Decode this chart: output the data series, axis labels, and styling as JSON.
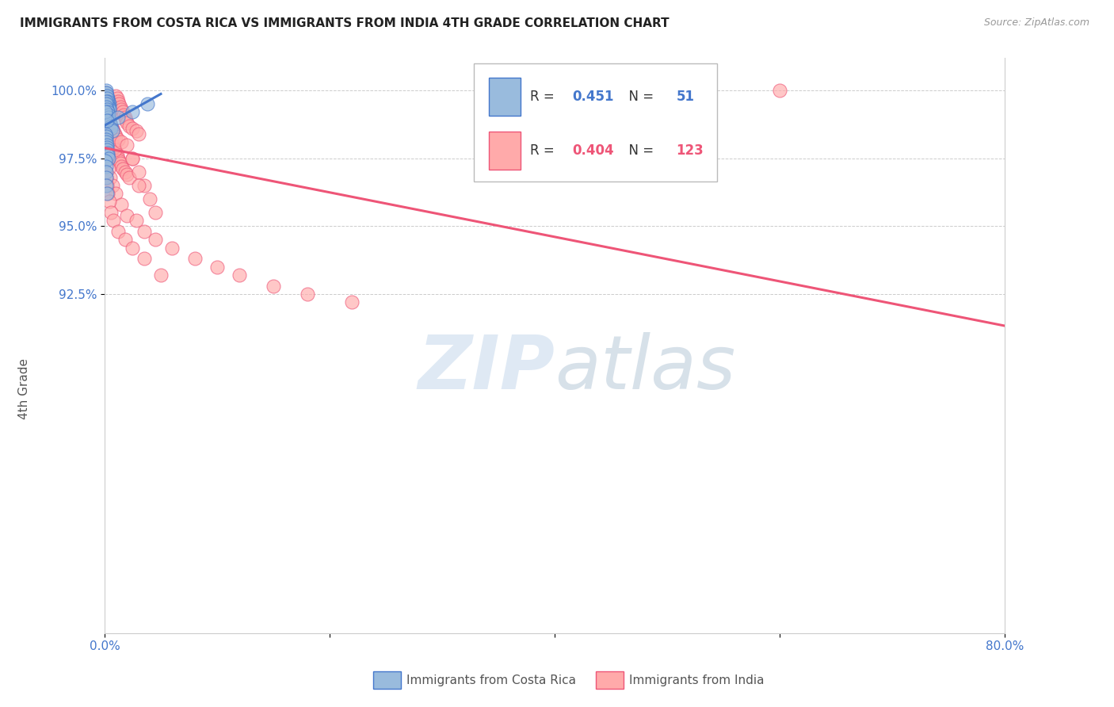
{
  "title": "IMMIGRANTS FROM COSTA RICA VS IMMIGRANTS FROM INDIA 4TH GRADE CORRELATION CHART",
  "source": "Source: ZipAtlas.com",
  "ylabel": "4th Grade",
  "xlim": [
    0.0,
    80.0
  ],
  "ylim": [
    80.0,
    101.2
  ],
  "legend_label1": "Immigrants from Costa Rica",
  "legend_label2": "Immigrants from India",
  "R1": 0.451,
  "N1": 51,
  "R2": 0.404,
  "N2": 123,
  "blue_color": "#99BBDD",
  "pink_color": "#FFAAAA",
  "trendline_blue": "#4477CC",
  "trendline_pink": "#EE5577",
  "background_color": "#ffffff",
  "blue_x": [
    0.15,
    0.18,
    0.2,
    0.22,
    0.25,
    0.28,
    0.3,
    0.35,
    0.4,
    0.45,
    0.15,
    0.17,
    0.2,
    0.23,
    0.26,
    0.3,
    0.35,
    0.4,
    0.12,
    0.14,
    0.18,
    0.22,
    0.28,
    0.33,
    0.38,
    0.42,
    0.48,
    0.55,
    0.6,
    0.7,
    0.1,
    0.12,
    0.15,
    0.18,
    0.2,
    0.22,
    0.25,
    0.28,
    0.32,
    0.36,
    0.1,
    0.12,
    0.14,
    0.16,
    0.18,
    0.2,
    1.2,
    2.5,
    3.8,
    0.08,
    0.25
  ],
  "blue_y": [
    99.8,
    99.9,
    99.7,
    99.8,
    99.6,
    99.5,
    99.7,
    99.6,
    99.5,
    99.4,
    100.0,
    99.9,
    99.8,
    99.7,
    99.6,
    99.5,
    99.4,
    99.3,
    99.6,
    99.5,
    99.4,
    99.3,
    99.2,
    99.1,
    99.0,
    98.9,
    98.8,
    98.7,
    98.6,
    98.5,
    98.4,
    98.3,
    98.2,
    98.1,
    98.0,
    97.9,
    97.8,
    97.7,
    97.6,
    97.5,
    97.4,
    97.2,
    97.0,
    96.8,
    96.5,
    96.2,
    99.0,
    99.2,
    99.5,
    99.2,
    98.9
  ],
  "pink_x": [
    0.1,
    0.12,
    0.15,
    0.18,
    0.2,
    0.22,
    0.25,
    0.28,
    0.3,
    0.35,
    0.4,
    0.45,
    0.5,
    0.55,
    0.6,
    0.65,
    0.7,
    0.8,
    0.9,
    1.0,
    1.1,
    1.2,
    1.3,
    1.4,
    1.5,
    1.6,
    1.8,
    2.0,
    2.2,
    2.5,
    0.1,
    0.12,
    0.14,
    0.16,
    0.18,
    0.2,
    0.22,
    0.24,
    0.26,
    0.28,
    0.3,
    0.35,
    0.4,
    0.45,
    0.5,
    0.55,
    0.6,
    0.7,
    0.8,
    0.9,
    1.0,
    1.1,
    1.2,
    1.3,
    1.4,
    1.5,
    1.6,
    1.7,
    1.8,
    1.9,
    2.0,
    2.2,
    2.5,
    2.8,
    3.0,
    0.1,
    0.12,
    0.14,
    0.16,
    0.18,
    0.2,
    0.25,
    0.3,
    0.35,
    0.4,
    0.45,
    0.5,
    0.6,
    0.7,
    0.8,
    0.9,
    1.0,
    1.2,
    1.5,
    2.0,
    2.5,
    3.0,
    3.5,
    4.0,
    4.5,
    0.12,
    0.18,
    0.25,
    0.35,
    0.5,
    0.7,
    1.0,
    1.5,
    2.0,
    2.8,
    3.5,
    4.5,
    6.0,
    8.0,
    10.0,
    12.0,
    15.0,
    18.0,
    22.0,
    3.0,
    0.1,
    0.15,
    0.2,
    0.3,
    0.4,
    0.6,
    0.8,
    1.2,
    1.8,
    2.5,
    3.5,
    5.0,
    60.0
  ],
  "pink_y": [
    99.5,
    99.6,
    99.4,
    99.3,
    99.2,
    99.1,
    99.0,
    98.9,
    98.8,
    98.7,
    98.6,
    98.5,
    98.4,
    98.3,
    98.2,
    98.1,
    98.0,
    97.9,
    97.8,
    97.7,
    97.6,
    97.5,
    97.4,
    97.3,
    97.2,
    97.1,
    97.0,
    96.9,
    96.8,
    97.5,
    99.7,
    99.6,
    99.5,
    99.4,
    99.3,
    99.2,
    99.1,
    99.0,
    98.9,
    98.8,
    98.7,
    98.6,
    98.5,
    98.4,
    98.3,
    98.2,
    98.1,
    98.0,
    97.9,
    97.8,
    99.8,
    99.7,
    99.6,
    99.5,
    99.4,
    99.3,
    99.2,
    99.1,
    99.0,
    98.9,
    98.8,
    98.7,
    98.6,
    98.5,
    98.4,
    99.9,
    99.8,
    99.7,
    99.6,
    99.5,
    99.4,
    99.3,
    99.2,
    99.1,
    99.0,
    98.9,
    98.8,
    98.7,
    98.6,
    98.5,
    98.4,
    98.3,
    98.2,
    98.1,
    98.0,
    97.5,
    97.0,
    96.5,
    96.0,
    95.5,
    98.3,
    97.9,
    97.5,
    97.1,
    96.8,
    96.5,
    96.2,
    95.8,
    95.4,
    95.2,
    94.8,
    94.5,
    94.2,
    93.8,
    93.5,
    93.2,
    92.8,
    92.5,
    92.2,
    96.5,
    97.0,
    96.8,
    96.5,
    96.2,
    95.9,
    95.5,
    95.2,
    94.8,
    94.5,
    94.2,
    93.8,
    93.2,
    100.0
  ]
}
